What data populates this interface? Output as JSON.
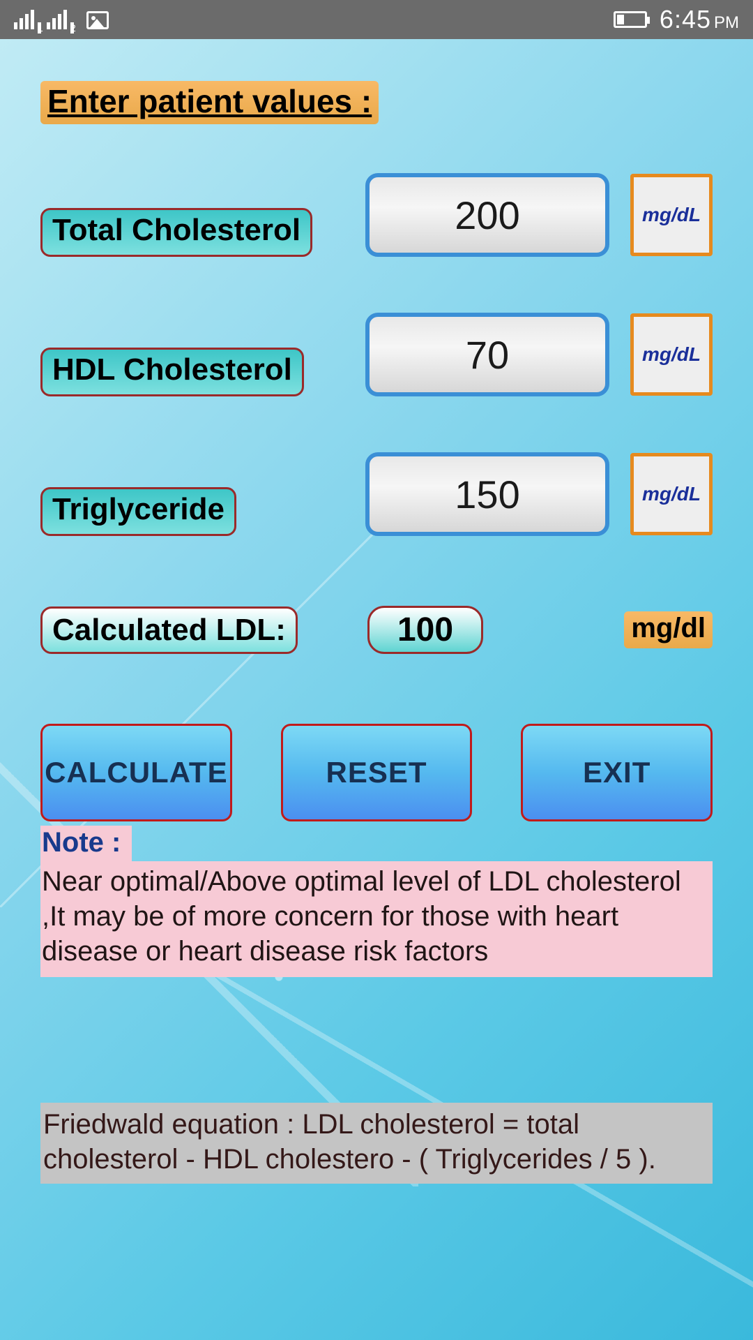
{
  "status_bar": {
    "time": "6:45",
    "ampm": "PM",
    "battery_pct": 20
  },
  "title": "Enter patient values :",
  "fields": {
    "total_cholesterol": {
      "label": "Total Cholesterol",
      "value": "200",
      "unit": "mg/dL"
    },
    "hdl_cholesterol": {
      "label": "HDL Cholesterol",
      "value": "70",
      "unit": "mg/dL"
    },
    "triglyceride": {
      "label": "Triglyceride",
      "value": "150",
      "unit": "mg/dL"
    }
  },
  "result": {
    "label": "Calculated LDL:",
    "value": "100",
    "unit": "mg/dl"
  },
  "buttons": {
    "calculate": "CALCULATE",
    "reset": "RESET",
    "exit": "EXIT"
  },
  "note": {
    "label": "Note :",
    "text": "Near optimal/Above optimal level of LDL cholesterol ,It may be of more concern for those with heart disease or heart disease risk factors"
  },
  "equation": "Friedwald equation : LDL cholesterol = total cholesterol - HDL cholestero - ( Triglycerides / 5 )."
}
